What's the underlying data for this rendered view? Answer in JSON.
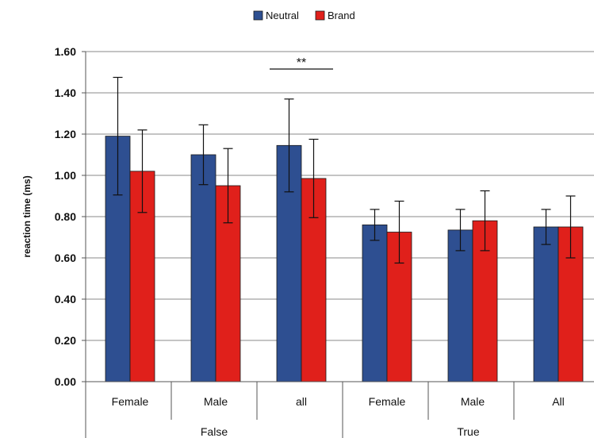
{
  "chart_data": {
    "type": "bar",
    "title": "",
    "xlabel": "",
    "ylabel": "reaction time (ms)",
    "ylim": [
      0,
      1.6
    ],
    "yticks": [
      "0.00",
      "0.20",
      "0.40",
      "0.60",
      "0.80",
      "1.00",
      "1.20",
      "1.40",
      "1.60"
    ],
    "grid": true,
    "legend_position": "top-center",
    "categories": [
      "Female",
      "Male",
      "all",
      "Female",
      "Male",
      "All"
    ],
    "groups": [
      {
        "label": "False",
        "span": 3
      },
      {
        "label": "True",
        "span": 3
      }
    ],
    "series": [
      {
        "name": "Neutral",
        "color": "#2e4f91",
        "values": [
          1.19,
          1.1,
          1.145,
          0.76,
          0.735,
          0.75
        ],
        "error": [
          0.285,
          0.145,
          0.225,
          0.075,
          0.1,
          0.085
        ]
      },
      {
        "name": "Brand",
        "color": "#e0201b",
        "values": [
          1.02,
          0.95,
          0.985,
          0.725,
          0.78,
          0.75
        ],
        "error": [
          0.2,
          0.18,
          0.19,
          0.15,
          0.145,
          0.15
        ]
      }
    ],
    "annotations": [
      {
        "text": "**",
        "category_index": 2
      }
    ]
  }
}
